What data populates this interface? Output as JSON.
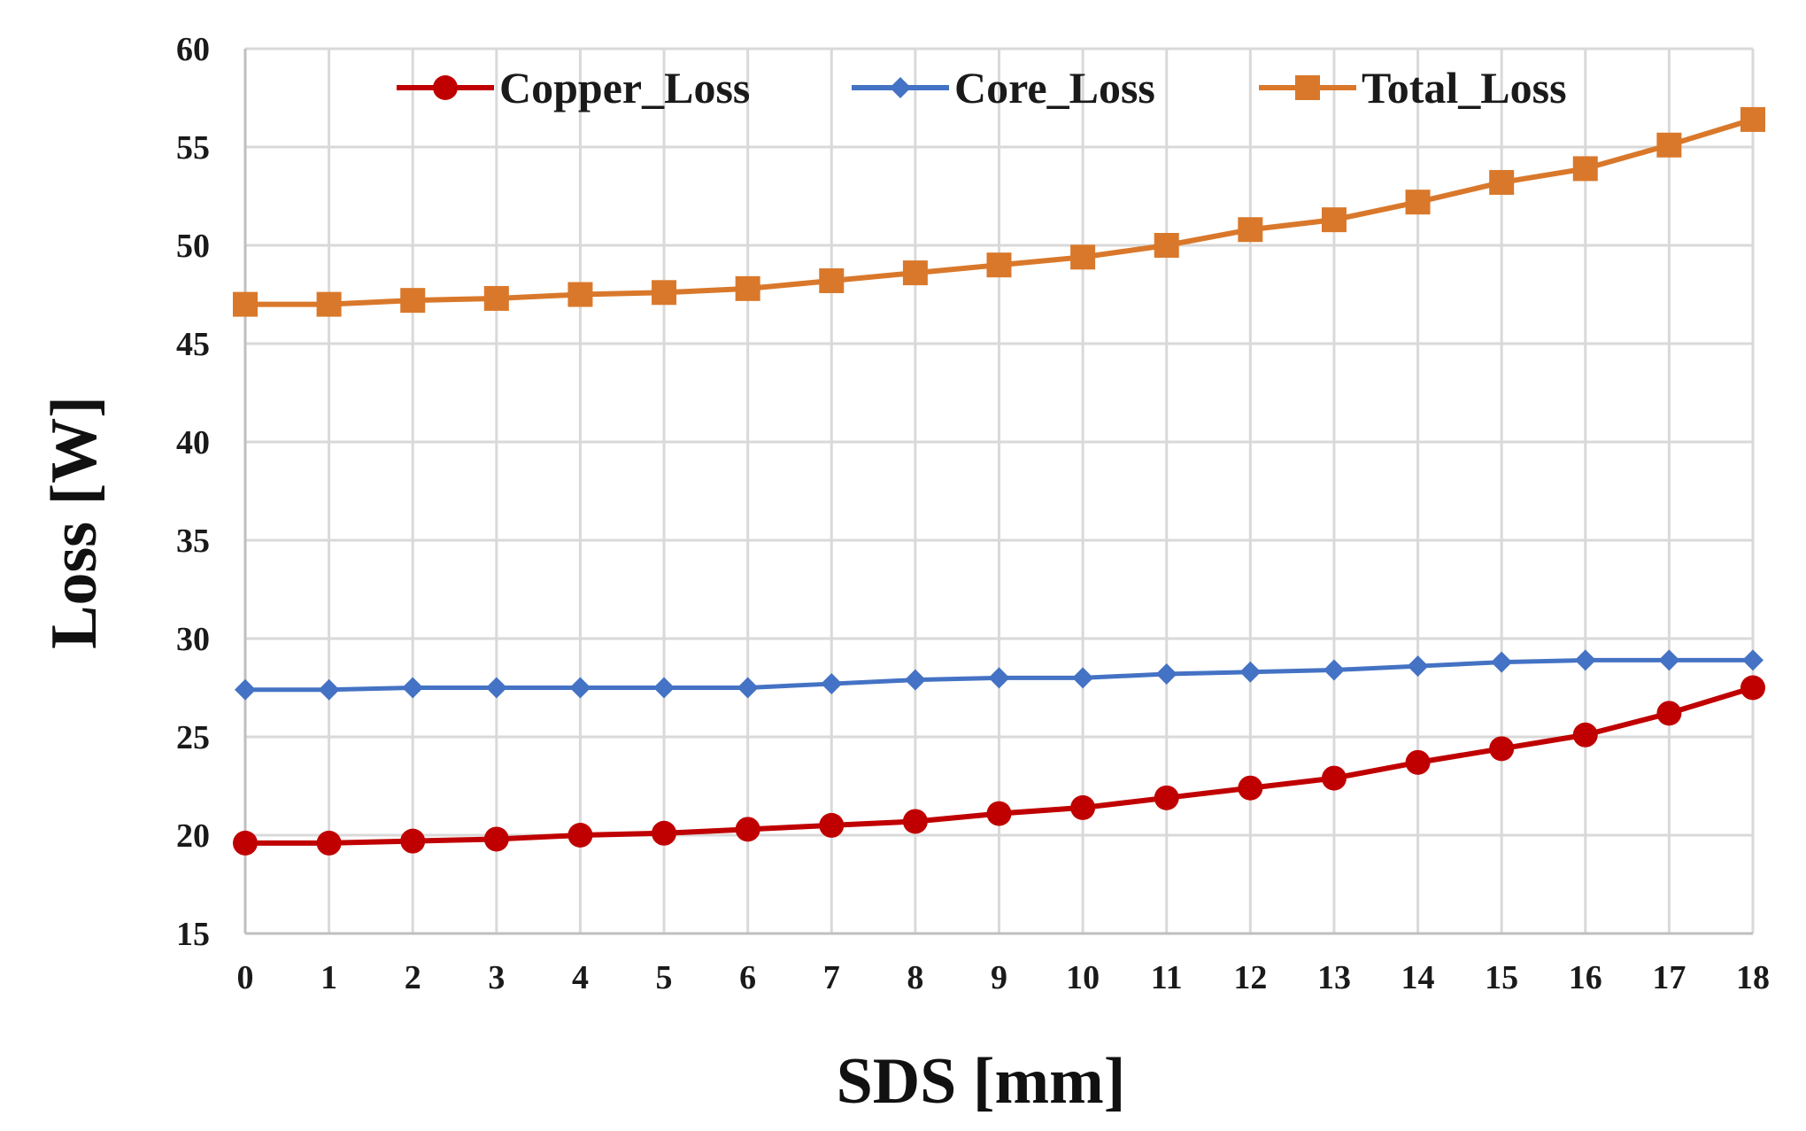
{
  "chart_data": {
    "type": "line",
    "title": "",
    "xlabel": "SDS [mm]",
    "ylabel": "Loss [W]",
    "x": [
      0,
      1,
      2,
      3,
      4,
      5,
      6,
      7,
      8,
      9,
      10,
      11,
      12,
      13,
      14,
      15,
      16,
      17,
      18
    ],
    "xtick_labels": [
      "0",
      "1",
      "2",
      "3",
      "4",
      "5",
      "6",
      "7",
      "8",
      "9",
      "10",
      "11",
      "12",
      "13",
      "14",
      "15",
      "16",
      "17",
      "18"
    ],
    "ylim": [
      15,
      60
    ],
    "yticks": [
      15,
      20,
      25,
      30,
      35,
      40,
      45,
      50,
      55,
      60
    ],
    "ytick_labels": [
      "15",
      "20",
      "25",
      "30",
      "35",
      "40",
      "45",
      "50",
      "55",
      "60"
    ],
    "grid": true,
    "legend_position": "top",
    "series": [
      {
        "name": "Copper_Loss",
        "color": "#c00000",
        "marker": "circle",
        "values": [
          19.6,
          19.6,
          19.7,
          19.8,
          20.0,
          20.1,
          20.3,
          20.5,
          20.7,
          21.1,
          21.4,
          21.9,
          22.4,
          22.9,
          23.7,
          24.4,
          25.1,
          26.2,
          27.5
        ]
      },
      {
        "name": "Core_Loss",
        "color": "#4472c4",
        "marker": "diamond",
        "values": [
          27.4,
          27.4,
          27.5,
          27.5,
          27.5,
          27.5,
          27.5,
          27.7,
          27.9,
          28.0,
          28.0,
          28.2,
          28.3,
          28.4,
          28.6,
          28.8,
          28.9,
          28.9,
          28.9
        ]
      },
      {
        "name": "Total_Loss",
        "color": "#d9782b",
        "marker": "square",
        "values": [
          47.0,
          47.0,
          47.2,
          47.3,
          47.5,
          47.6,
          47.8,
          48.2,
          48.6,
          49.0,
          49.4,
          50.0,
          50.8,
          51.3,
          52.2,
          53.2,
          53.9,
          55.1,
          56.4
        ]
      }
    ]
  }
}
